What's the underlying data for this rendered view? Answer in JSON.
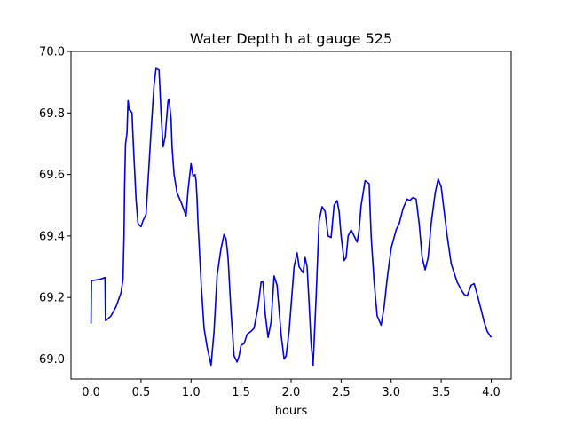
{
  "chart_data": {
    "type": "line",
    "title": "Water Depth h at gauge 525",
    "xlabel": "hours",
    "ylabel": "",
    "xlim": [
      -0.2,
      4.2
    ],
    "ylim": [
      68.935,
      70.0
    ],
    "x_ticks": [
      0.0,
      0.5,
      1.0,
      1.5,
      2.0,
      2.5,
      3.0,
      3.5,
      4.0
    ],
    "x_tick_labels": [
      "0.0",
      "0.5",
      "1.0",
      "1.5",
      "2.0",
      "2.5",
      "3.0",
      "3.5",
      "4.0"
    ],
    "y_ticks": [
      69.0,
      69.2,
      69.4,
      69.6,
      69.8,
      70.0
    ],
    "y_tick_labels": [
      "69.0",
      "69.2",
      "69.4",
      "69.6",
      "69.8",
      "70.0"
    ],
    "grid": false,
    "legend": "none",
    "series": [
      {
        "color": "#0000ee",
        "x": [
          0.0,
          0.005,
          0.01,
          0.05,
          0.1,
          0.14,
          0.145,
          0.15,
          0.2,
          0.25,
          0.3,
          0.32,
          0.33,
          0.335,
          0.345,
          0.36,
          0.37,
          0.375,
          0.38,
          0.39,
          0.41,
          0.42,
          0.45,
          0.47,
          0.5,
          0.52,
          0.55,
          0.6,
          0.63,
          0.65,
          0.68,
          0.7,
          0.72,
          0.74,
          0.77,
          0.78,
          0.8,
          0.81,
          0.83,
          0.86,
          0.9,
          0.95,
          0.97,
          1.0,
          1.02,
          1.04,
          1.05,
          1.06,
          1.07,
          1.1,
          1.13,
          1.16,
          1.2,
          1.23,
          1.26,
          1.3,
          1.33,
          1.35,
          1.37,
          1.4,
          1.43,
          1.46,
          1.48,
          1.5,
          1.53,
          1.56,
          1.6,
          1.63,
          1.67,
          1.7,
          1.72,
          1.74,
          1.77,
          1.8,
          1.83,
          1.86,
          1.9,
          1.93,
          1.95,
          1.98,
          2.03,
          2.06,
          2.08,
          2.1,
          2.12,
          2.14,
          2.16,
          2.18,
          2.2,
          2.22,
          2.25,
          2.28,
          2.31,
          2.34,
          2.37,
          2.4,
          2.43,
          2.46,
          2.48,
          2.5,
          2.53,
          2.55,
          2.57,
          2.6,
          2.63,
          2.66,
          2.68,
          2.7,
          2.74,
          2.78,
          2.8,
          2.83,
          2.86,
          2.9,
          2.93,
          2.96,
          3.0,
          3.05,
          3.08,
          3.12,
          3.16,
          3.19,
          3.2,
          3.22,
          3.25,
          3.28,
          3.31,
          3.34,
          3.37,
          3.4,
          3.44,
          3.47,
          3.5,
          3.53,
          3.56,
          3.6,
          3.63,
          3.66,
          3.7,
          3.73,
          3.76,
          3.8,
          3.83,
          3.86,
          3.9,
          3.93,
          3.96,
          3.98,
          4.0
        ],
        "y": [
          69.115,
          69.255,
          69.255,
          69.257,
          69.26,
          69.265,
          69.125,
          69.125,
          69.14,
          69.17,
          69.215,
          69.26,
          69.4,
          69.55,
          69.7,
          69.735,
          69.84,
          69.83,
          69.81,
          69.81,
          69.8,
          69.72,
          69.52,
          69.44,
          69.43,
          69.45,
          69.47,
          69.74,
          69.89,
          69.945,
          69.94,
          69.8,
          69.69,
          69.72,
          69.84,
          69.845,
          69.78,
          69.69,
          69.6,
          69.54,
          69.51,
          69.465,
          69.55,
          69.635,
          69.595,
          69.6,
          69.58,
          69.52,
          69.44,
          69.25,
          69.1,
          69.04,
          68.98,
          69.09,
          69.27,
          69.36,
          69.405,
          69.39,
          69.33,
          69.15,
          69.01,
          68.99,
          69.01,
          69.045,
          69.05,
          69.08,
          69.09,
          69.1,
          69.17,
          69.25,
          69.25,
          69.15,
          69.07,
          69.12,
          69.27,
          69.24,
          69.08,
          69.0,
          69.01,
          69.09,
          69.3,
          69.345,
          69.3,
          69.29,
          69.28,
          69.33,
          69.3,
          69.18,
          69.05,
          68.98,
          69.2,
          69.45,
          69.495,
          69.48,
          69.4,
          69.395,
          69.5,
          69.515,
          69.48,
          69.4,
          69.32,
          69.33,
          69.4,
          69.42,
          69.4,
          69.38,
          69.42,
          69.5,
          69.58,
          69.57,
          69.4,
          69.25,
          69.14,
          69.11,
          69.17,
          69.26,
          69.36,
          69.42,
          69.44,
          69.49,
          69.52,
          69.515,
          69.52,
          69.525,
          69.52,
          69.44,
          69.33,
          69.29,
          69.33,
          69.44,
          69.54,
          69.585,
          69.56,
          69.48,
          69.4,
          69.31,
          69.28,
          69.25,
          69.225,
          69.21,
          69.205,
          69.24,
          69.245,
          69.21,
          69.16,
          69.12,
          69.09,
          69.08,
          69.07
        ]
      }
    ]
  }
}
